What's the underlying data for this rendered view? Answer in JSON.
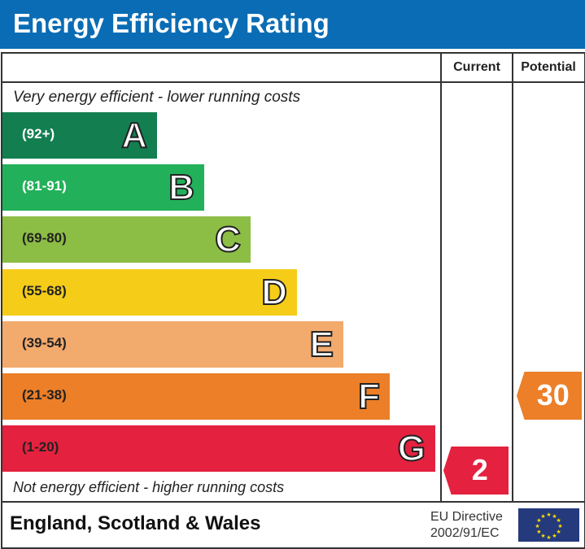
{
  "title": "Energy Efficiency Rating",
  "columns": {
    "current": "Current",
    "potential": "Potential"
  },
  "top_note": "Very energy efficient - lower running costs",
  "bottom_note": "Not energy efficient - higher running costs",
  "footer": {
    "region": "England, Scotland & Wales",
    "directive_line1": "EU Directive",
    "directive_line2": "2002/91/EC"
  },
  "chart_data": {
    "type": "bar",
    "bands": [
      {
        "letter": "A",
        "range": "(92+)",
        "color": "#137e50"
      },
      {
        "letter": "B",
        "range": "(81-91)",
        "color": "#23b05a"
      },
      {
        "letter": "C",
        "range": "(69-80)",
        "color": "#8cbd45"
      },
      {
        "letter": "D",
        "range": "(55-68)",
        "color": "#f5cd19"
      },
      {
        "letter": "E",
        "range": "(39-54)",
        "color": "#f2aa6d"
      },
      {
        "letter": "F",
        "range": "(21-38)",
        "color": "#ec7f28"
      },
      {
        "letter": "G",
        "range": "(1-20)",
        "color": "#e4213f"
      }
    ],
    "current": {
      "value": "2",
      "band": "G",
      "color": "#e4213f"
    },
    "potential": {
      "value": "30",
      "band": "F",
      "color": "#ec7f28"
    }
  }
}
